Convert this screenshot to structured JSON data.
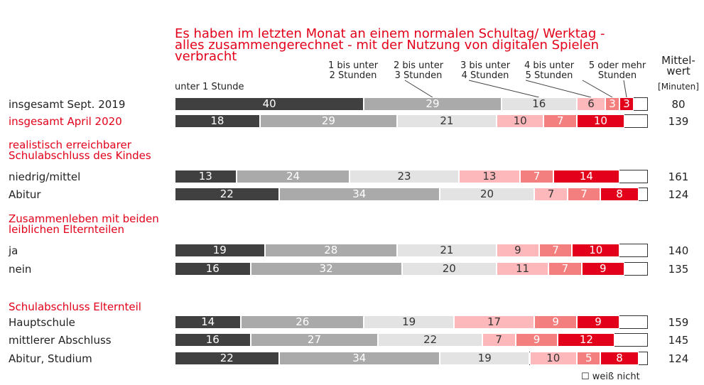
{
  "chart_data": {
    "type": "stacked-bar-horizontal",
    "title": "Es haben im letzten Monat an einem normalen Schultag/ Werktag -\nalles zusammengerechnet - mit der Nutzung von digitalen Spielen\nverbracht",
    "categories": [
      "insgesamt Sept. 2019",
      "insgesamt April 2020",
      "niedrig/mittel",
      "Abitur",
      "ja",
      "nein",
      "Hauptschule",
      "mittlerer Abschluss",
      "Abitur, Studium"
    ],
    "groups": [
      {
        "label": "realistisch erreichbarer\nSchulabschluss des Kindes",
        "before": 2
      },
      {
        "label": "Zusammenleben mit beiden\nleiblichen Elternteilen",
        "before": 4
      },
      {
        "label": "Schulabschluss Elternteil",
        "before": 6
      }
    ],
    "highlight_rows": [
      1
    ],
    "highlight_color": "#e2001a",
    "xlim": [
      0,
      100
    ],
    "series": [
      {
        "name": "unter 1 Stunde",
        "color": "#404040",
        "values": [
          40,
          18,
          13,
          22,
          19,
          16,
          14,
          16,
          22
        ]
      },
      {
        "name": "1 bis unter\n2 Stunden",
        "color": "#aaaaaa",
        "values": [
          29,
          29,
          24,
          34,
          28,
          32,
          26,
          27,
          34
        ]
      },
      {
        "name": "2 bis unter\n3 Stunden",
        "color": "#e3e3e3",
        "values": [
          16,
          21,
          23,
          20,
          21,
          20,
          19,
          22,
          19
        ]
      },
      {
        "name": "3 bis unter\n4 Stunden",
        "color": "#fdb8bb",
        "values": [
          6,
          10,
          13,
          7,
          9,
          11,
          17,
          7,
          10
        ]
      },
      {
        "name": "4 bis unter\n5 Stunden",
        "color": "#f47f7f",
        "values": [
          3,
          7,
          7,
          7,
          7,
          7,
          9,
          9,
          5
        ]
      },
      {
        "name": "5 oder mehr\nStunden",
        "color": "#e2001a",
        "values": [
          3,
          10,
          14,
          8,
          10,
          9,
          9,
          12,
          8
        ]
      }
    ],
    "mean_label": "Mittel-\nwert",
    "mean_unit": "[Minuten]",
    "means": [
      80,
      139,
      161,
      124,
      140,
      135,
      159,
      145,
      124
    ],
    "legend": "☐ weiß nicht"
  }
}
